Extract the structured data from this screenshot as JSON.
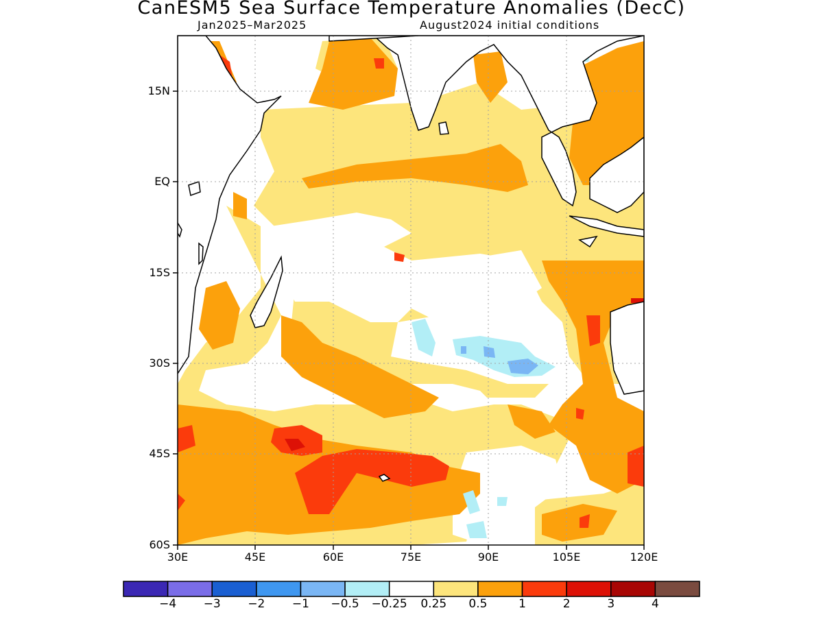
{
  "title": "CanESM5 Sea Surface Temperature Anomalies (DecC)",
  "subtitle_left": "Jan2025–Mar2025",
  "subtitle_right": "August2024 initial conditions",
  "map": {
    "lon_range": [
      30,
      120
    ],
    "lat_range": [
      -60,
      24
    ],
    "lat_ticks": [
      "15N",
      "EQ",
      "15S",
      "30S",
      "45S",
      "60S"
    ],
    "lon_ticks": [
      "30E",
      "45E",
      "60E",
      "75E",
      "90E",
      "105E",
      "120E"
    ],
    "grid": "dotted",
    "region": "Indian Ocean"
  },
  "colorbar": {
    "colors": [
      "#3b28b4",
      "#7a6de8",
      "#1a5fd2",
      "#3f97f0",
      "#7ab6f4",
      "#b2eef6",
      "#ffffff",
      "#fde57c",
      "#fca10c",
      "#fb3b0c",
      "#dd1106",
      "#a80604",
      "#7a4b3f"
    ],
    "labels": [
      "−4",
      "−3",
      "−2",
      "−1",
      "−0.5",
      "−0.25",
      "0.25",
      "0.5",
      "1",
      "2",
      "3",
      "4"
    ]
  }
}
